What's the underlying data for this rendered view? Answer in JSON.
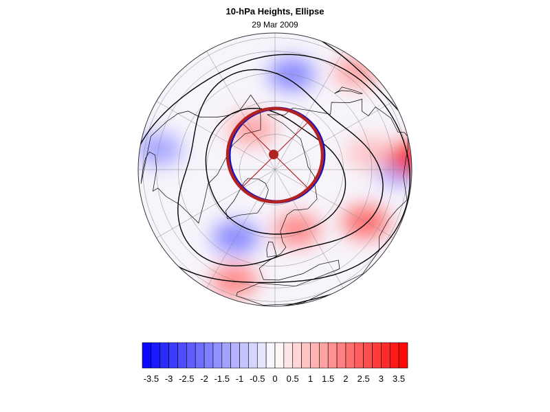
{
  "map": {
    "title": "10-hPa Heights, Ellipse",
    "date": "29 Mar 2009",
    "projection": "north-polar-orthographic",
    "colors": {
      "ellipse": "#b22222",
      "ellipse_edge": "#1010c0",
      "contour": "#000000",
      "coast": "#000000",
      "grid": "#888888"
    },
    "anomaly_regions": [
      {
        "name": "warm",
        "lat": 62,
        "lon": 20,
        "value": 2.0
      },
      {
        "name": "warm",
        "lat": 40,
        "lon": 60,
        "value": 2.5
      },
      {
        "name": "cold",
        "lat": 55,
        "lon": -30,
        "value": -2.0
      },
      {
        "name": "cold",
        "lat": 30,
        "lon": -100,
        "value": -1.5
      },
      {
        "name": "warm",
        "lat": 20,
        "lon": 140,
        "value": 1.5
      },
      {
        "name": "cold",
        "lat": 45,
        "lon": 170,
        "value": -2.0
      },
      {
        "name": "warm",
        "lat": 70,
        "lon": -150,
        "value": 1.5
      },
      {
        "name": "warm",
        "lat": 30,
        "lon": -20,
        "value": 2.0
      },
      {
        "name": "cold",
        "lat": 25,
        "lon": 90,
        "value": -1.5
      },
      {
        "name": "warm",
        "lat": 45,
        "lon": 100,
        "value": 1.0
      },
      {
        "name": "warm",
        "lat": 5,
        "lon": 95,
        "value": 3.5
      }
    ]
  },
  "colorbar": {
    "min": -3.75,
    "max": 3.75,
    "step": 0.25,
    "tick_labels": [
      "-3.5",
      "-3",
      "-2.5",
      "-2",
      "-1.5",
      "-1",
      "-0.5",
      "0",
      "0.5",
      "1",
      "1.5",
      "2",
      "2.5",
      "3",
      "3.5"
    ],
    "tick_values": [
      -3.5,
      -3,
      -2.5,
      -2,
      -1.5,
      -1,
      -0.5,
      0,
      0.5,
      1,
      1.5,
      2,
      2.5,
      3,
      3.5
    ],
    "cold_color": "#0000ff",
    "warm_color": "#ff0000"
  }
}
